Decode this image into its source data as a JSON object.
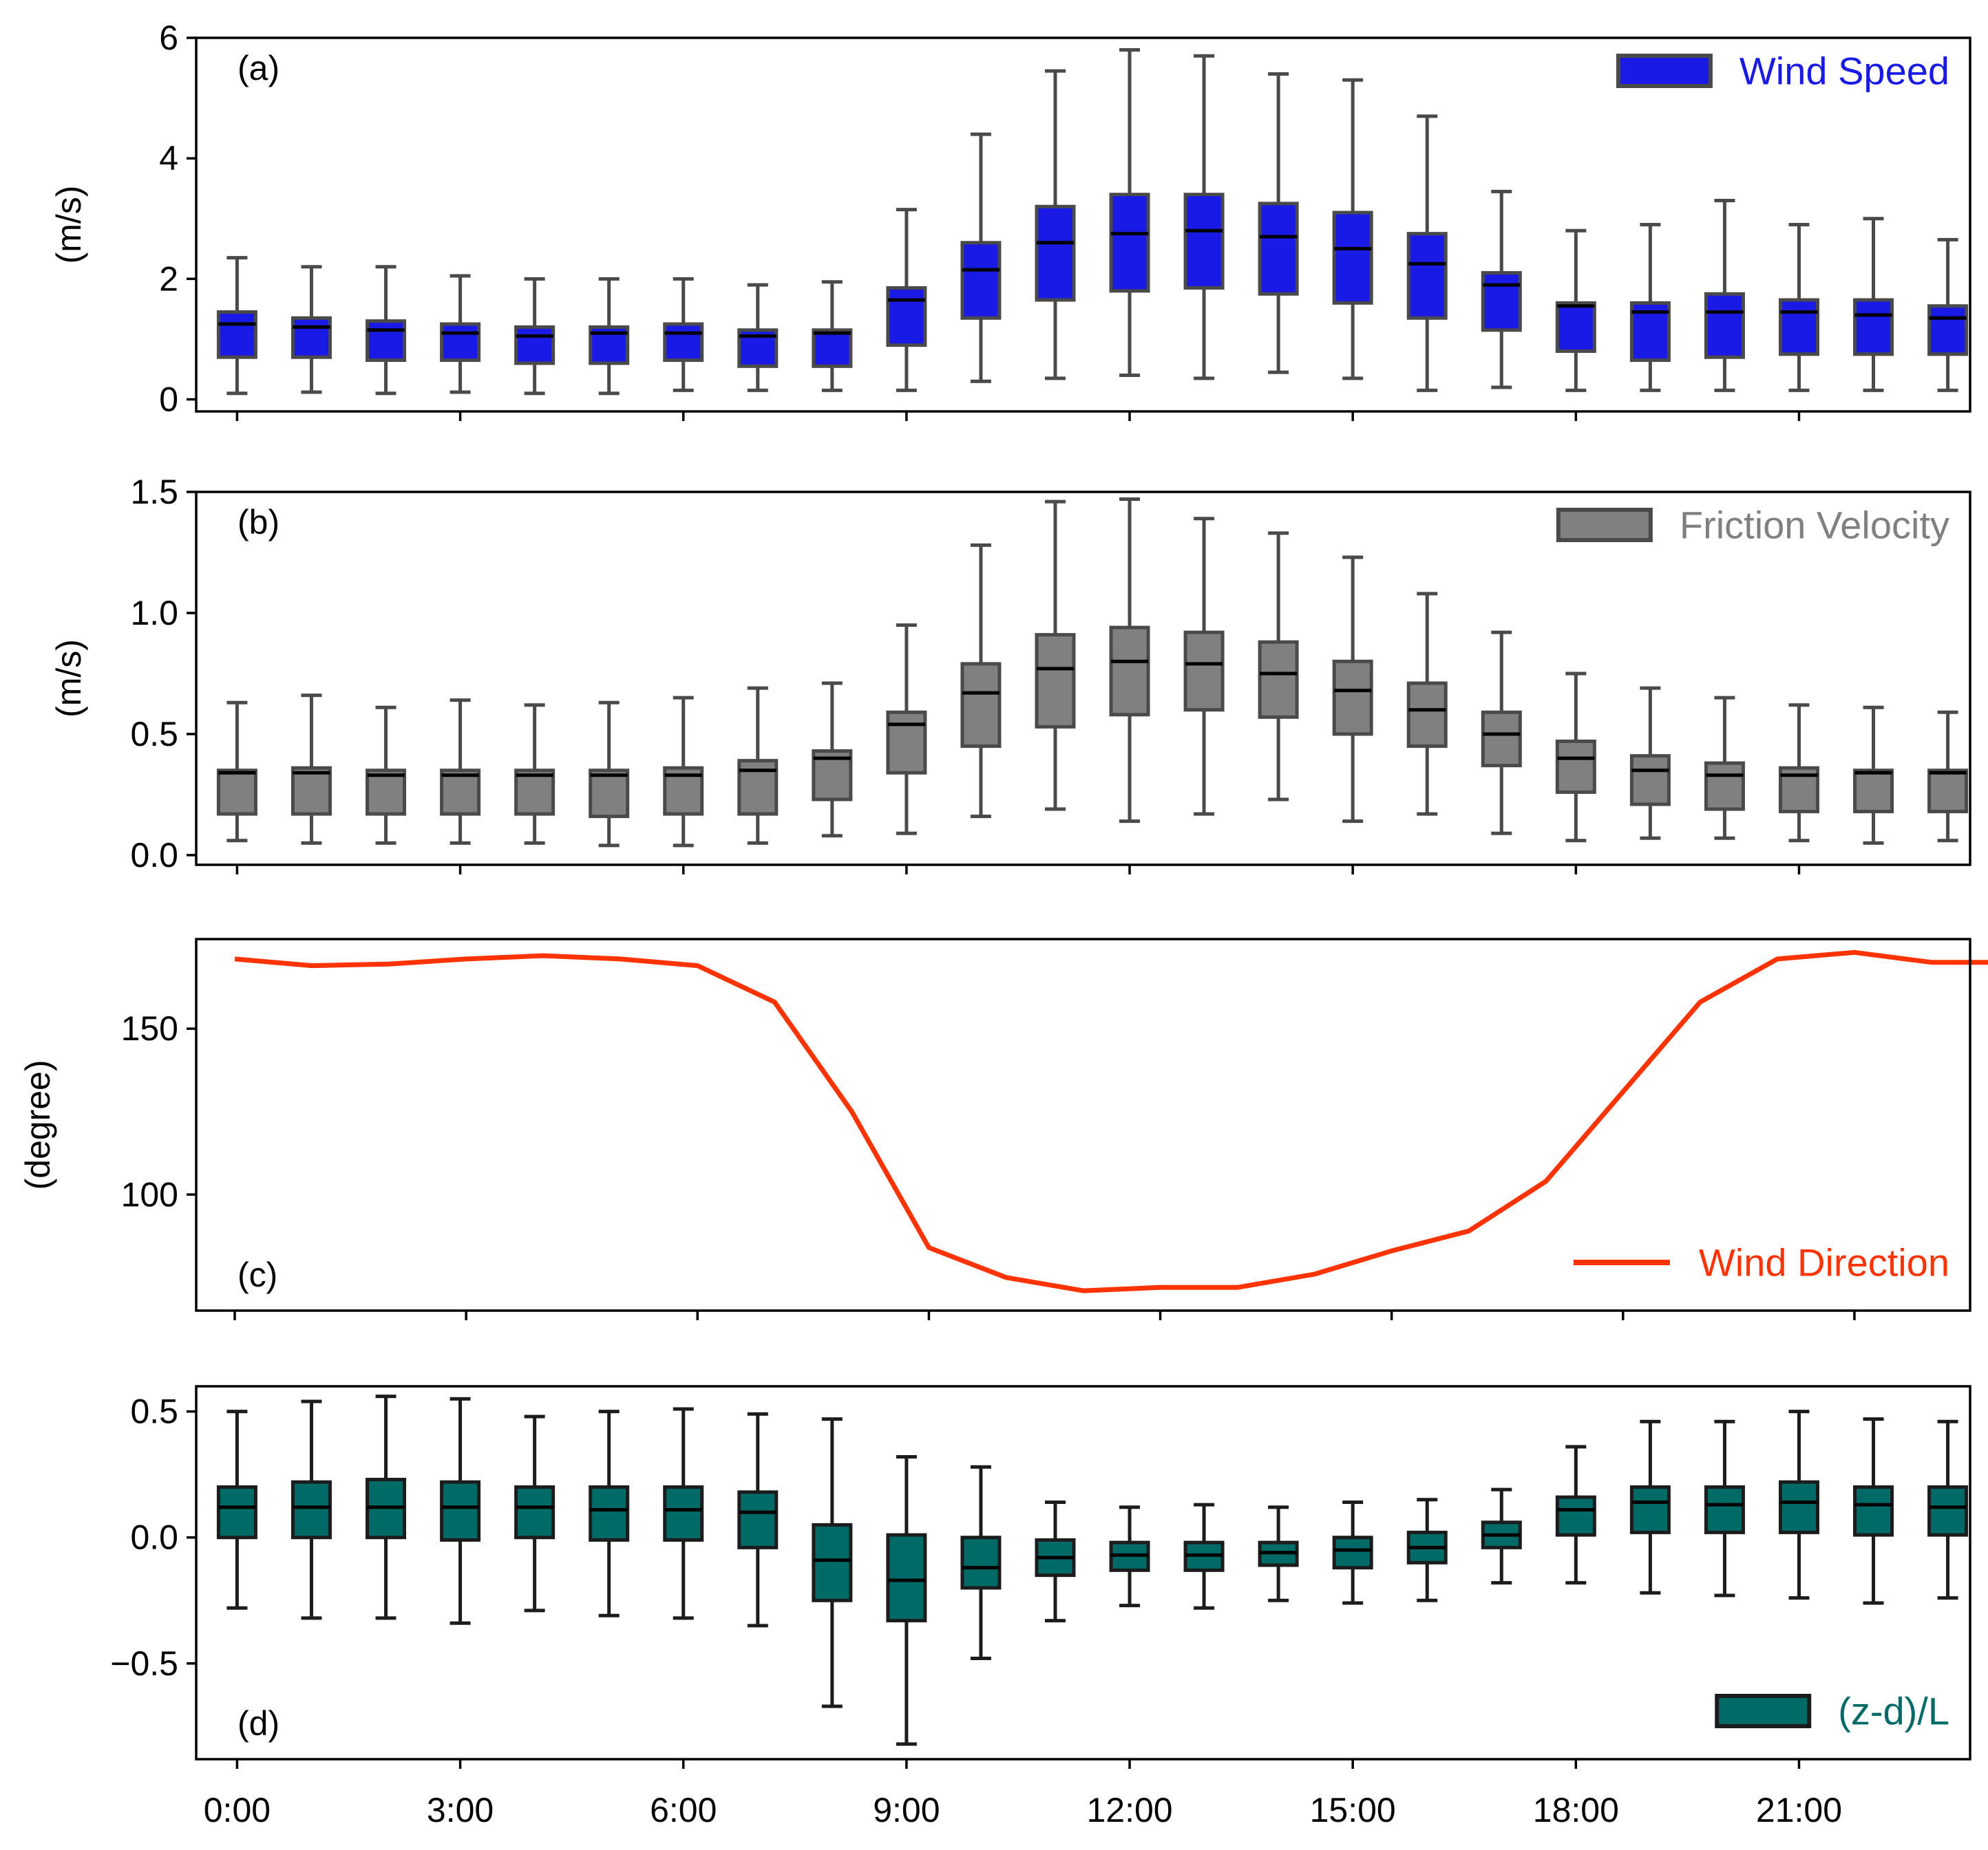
{
  "chart_data": [
    {
      "type": "box",
      "panel_label": "(a)",
      "ylabel": "(m/s)",
      "ylim": [
        -0.2,
        6.0
      ],
      "yticks": [
        0,
        2,
        4,
        6
      ],
      "ytick_labels": [
        "0",
        "2",
        "4",
        "6"
      ],
      "legend": "Wind Speed",
      "legend_position": "top-right",
      "color": "#1a1ae6",
      "x_hours": [
        0,
        1,
        2,
        3,
        4,
        5,
        6,
        7,
        8,
        9,
        10,
        11,
        12,
        13,
        14,
        15,
        16,
        17,
        18,
        19,
        20,
        21,
        22,
        23
      ],
      "whislo": [
        0.1,
        0.12,
        0.1,
        0.12,
        0.1,
        0.1,
        0.15,
        0.15,
        0.15,
        0.15,
        0.3,
        0.35,
        0.4,
        0.35,
        0.45,
        0.35,
        0.15,
        0.2,
        0.15,
        0.15,
        0.15,
        0.15,
        0.15,
        0.15
      ],
      "q1": [
        0.7,
        0.7,
        0.65,
        0.65,
        0.6,
        0.6,
        0.65,
        0.55,
        0.55,
        0.9,
        1.35,
        1.65,
        1.8,
        1.85,
        1.75,
        1.6,
        1.35,
        1.15,
        0.8,
        0.65,
        0.7,
        0.75,
        0.75,
        0.75
      ],
      "med": [
        1.25,
        1.2,
        1.15,
        1.1,
        1.05,
        1.1,
        1.1,
        1.05,
        1.1,
        1.65,
        2.15,
        2.6,
        2.75,
        2.8,
        2.7,
        2.5,
        2.25,
        1.9,
        1.55,
        1.45,
        1.45,
        1.45,
        1.4,
        1.35
      ],
      "q3": [
        1.45,
        1.35,
        1.3,
        1.25,
        1.2,
        1.2,
        1.25,
        1.15,
        1.15,
        1.85,
        2.6,
        3.2,
        3.4,
        3.4,
        3.25,
        3.1,
        2.75,
        2.1,
        1.6,
        1.6,
        1.75,
        1.65,
        1.65,
        1.55
      ],
      "whishi": [
        2.35,
        2.2,
        2.2,
        2.05,
        2.0,
        2.0,
        2.0,
        1.9,
        1.95,
        3.15,
        4.4,
        5.45,
        5.8,
        5.7,
        5.4,
        5.3,
        4.7,
        3.45,
        2.8,
        2.9,
        3.3,
        2.9,
        3.0,
        2.65
      ]
    },
    {
      "type": "box",
      "panel_label": "(b)",
      "ylabel": "(m/s)",
      "ylim": [
        -0.04,
        1.5
      ],
      "yticks": [
        0.0,
        0.5,
        1.0,
        1.5
      ],
      "ytick_labels": [
        "0.0",
        "0.5",
        "1.0",
        "1.5"
      ],
      "legend": "Friction Velocity",
      "legend_position": "top-right",
      "color": "#808080",
      "x_hours": [
        0,
        1,
        2,
        3,
        4,
        5,
        6,
        7,
        8,
        9,
        10,
        11,
        12,
        13,
        14,
        15,
        16,
        17,
        18,
        19,
        20,
        21,
        22,
        23
      ],
      "whislo": [
        0.06,
        0.05,
        0.05,
        0.05,
        0.05,
        0.04,
        0.04,
        0.05,
        0.08,
        0.09,
        0.16,
        0.19,
        0.14,
        0.17,
        0.23,
        0.14,
        0.17,
        0.09,
        0.06,
        0.07,
        0.07,
        0.06,
        0.05,
        0.06
      ],
      "q1": [
        0.17,
        0.17,
        0.17,
        0.17,
        0.17,
        0.16,
        0.17,
        0.17,
        0.23,
        0.34,
        0.45,
        0.53,
        0.58,
        0.6,
        0.57,
        0.5,
        0.45,
        0.37,
        0.26,
        0.21,
        0.19,
        0.18,
        0.18,
        0.18
      ],
      "med": [
        0.34,
        0.34,
        0.33,
        0.33,
        0.33,
        0.33,
        0.33,
        0.35,
        0.4,
        0.54,
        0.67,
        0.77,
        0.8,
        0.79,
        0.75,
        0.68,
        0.6,
        0.5,
        0.4,
        0.35,
        0.33,
        0.33,
        0.34,
        0.34
      ],
      "q3": [
        0.35,
        0.36,
        0.35,
        0.35,
        0.35,
        0.35,
        0.36,
        0.39,
        0.43,
        0.59,
        0.79,
        0.91,
        0.94,
        0.92,
        0.88,
        0.8,
        0.71,
        0.59,
        0.47,
        0.41,
        0.38,
        0.36,
        0.35,
        0.35
      ],
      "whishi": [
        0.63,
        0.66,
        0.61,
        0.64,
        0.62,
        0.63,
        0.65,
        0.69,
        0.71,
        0.95,
        1.28,
        1.46,
        1.47,
        1.39,
        1.33,
        1.23,
        1.08,
        0.92,
        0.75,
        0.69,
        0.65,
        0.62,
        0.61,
        0.59
      ]
    },
    {
      "type": "line",
      "panel_label": "(c)",
      "ylabel": "(degree)",
      "ylim": [
        65,
        177
      ],
      "yticks": [
        100,
        150
      ],
      "ytick_labels": [
        "100",
        "150"
      ],
      "legend": "Wind Direction",
      "legend_position": "bottom-right",
      "color": "#ff3300",
      "x": [
        0,
        1,
        2,
        3,
        4,
        5,
        6,
        7,
        8,
        9,
        10,
        11,
        12,
        13,
        14,
        15,
        16,
        17,
        18,
        19,
        20,
        21,
        22,
        23
      ],
      "y": [
        171,
        169,
        169.5,
        171,
        172,
        171,
        169,
        158,
        125,
        84,
        75,
        71,
        72,
        72,
        76,
        83,
        89,
        104,
        131,
        158,
        171,
        173,
        170,
        170
      ]
    },
    {
      "type": "box",
      "panel_label": "(d)",
      "ylabel": "",
      "ylim": [
        -0.88,
        0.6
      ],
      "yticks": [
        -0.5,
        0.0,
        0.5
      ],
      "ytick_labels": [
        "−0.5",
        "0.0",
        "0.5"
      ],
      "legend": "(z-d)/L",
      "legend_position": "bottom-right",
      "color": "#006b66",
      "x_hours": [
        0,
        1,
        2,
        3,
        4,
        5,
        6,
        7,
        8,
        9,
        10,
        11,
        12,
        13,
        14,
        15,
        16,
        17,
        18,
        19,
        20,
        21,
        22,
        23
      ],
      "whislo": [
        -0.28,
        -0.32,
        -0.32,
        -0.34,
        -0.29,
        -0.31,
        -0.32,
        -0.35,
        -0.67,
        -0.82,
        -0.48,
        -0.33,
        -0.27,
        -0.28,
        -0.25,
        -0.26,
        -0.25,
        -0.18,
        -0.18,
        -0.22,
        -0.23,
        -0.24,
        -0.26,
        -0.24
      ],
      "q1": [
        0.0,
        0.0,
        0.0,
        -0.01,
        0.0,
        -0.01,
        -0.01,
        -0.04,
        -0.25,
        -0.33,
        -0.2,
        -0.15,
        -0.13,
        -0.13,
        -0.11,
        -0.12,
        -0.1,
        -0.04,
        0.01,
        0.02,
        0.02,
        0.02,
        0.01,
        0.01
      ],
      "med": [
        0.12,
        0.12,
        0.12,
        0.12,
        0.12,
        0.11,
        0.11,
        0.1,
        -0.09,
        -0.17,
        -0.12,
        -0.08,
        -0.07,
        -0.07,
        -0.06,
        -0.05,
        -0.04,
        0.01,
        0.11,
        0.14,
        0.13,
        0.14,
        0.13,
        0.12
      ],
      "q3": [
        0.2,
        0.22,
        0.23,
        0.22,
        0.2,
        0.2,
        0.2,
        0.18,
        0.05,
        0.01,
        0.0,
        -0.01,
        -0.02,
        -0.02,
        -0.02,
        0.0,
        0.02,
        0.06,
        0.16,
        0.2,
        0.2,
        0.22,
        0.2,
        0.2
      ],
      "whishi": [
        0.5,
        0.54,
        0.56,
        0.55,
        0.48,
        0.5,
        0.51,
        0.49,
        0.47,
        0.32,
        0.28,
        0.14,
        0.12,
        0.13,
        0.12,
        0.14,
        0.15,
        0.19,
        0.36,
        0.46,
        0.46,
        0.5,
        0.47,
        0.46
      ]
    }
  ],
  "xaxis": {
    "tick_hours": [
      0,
      3,
      6,
      9,
      12,
      15,
      18,
      21
    ],
    "tick_labels": [
      "0:00",
      "3:00",
      "6:00",
      "9:00",
      "12:00",
      "15:00",
      "18:00",
      "21:00"
    ]
  }
}
